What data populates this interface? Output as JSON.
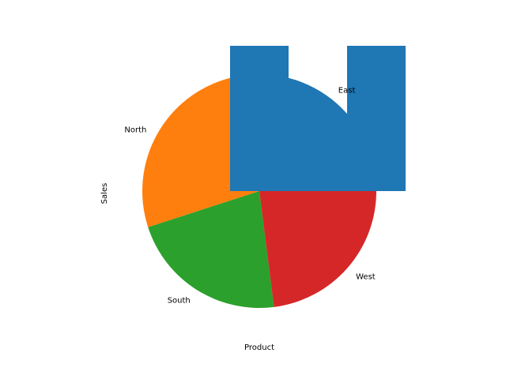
{
  "chart_data": [
    {
      "type": "pie",
      "categories": [
        "East",
        "North",
        "South",
        "West"
      ],
      "values": [
        29,
        26,
        22,
        23
      ],
      "colors": [
        "#1f77b4",
        "#ff7f0e",
        "#2ca02c",
        "#d62728"
      ],
      "start_angle_deg": 0,
      "direction": "counterclockwise",
      "xlabel": "Product",
      "ylabel": "Sales"
    },
    {
      "type": "bar",
      "categories": [
        "",
        ""
      ],
      "series": [
        {
          "values": [
            1,
            1
          ],
          "color": "#1f77b4"
        }
      ],
      "overlay": "drawn over the pie chart, no axes or tick labels shown"
    }
  ]
}
